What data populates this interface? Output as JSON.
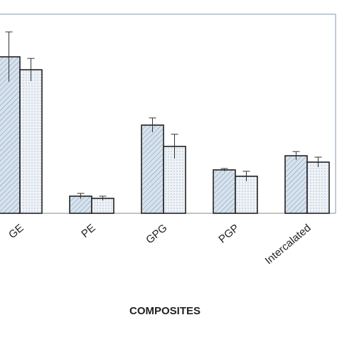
{
  "chart_data": {
    "type": "bar",
    "xlabel": "COMPOSITES",
    "categories": [
      "GE",
      "PE",
      "GPG",
      "PGP",
      "Intercalated"
    ],
    "series": [
      {
        "color": "#d6e2ee",
        "values": [
          78.6,
          8.6,
          44.3,
          21.8,
          28.9
        ],
        "errors": [
          12.5,
          1.4,
          3.6,
          0.7,
          2.1
        ]
      },
      {
        "color": "#eef3f8",
        "values": [
          72.1,
          7.5,
          33.6,
          18.6,
          25.7
        ],
        "errors": [
          5.7,
          1.1,
          6.1,
          2.5,
          2.5
        ]
      }
    ],
    "ylim": [
      0,
      100
    ]
  }
}
